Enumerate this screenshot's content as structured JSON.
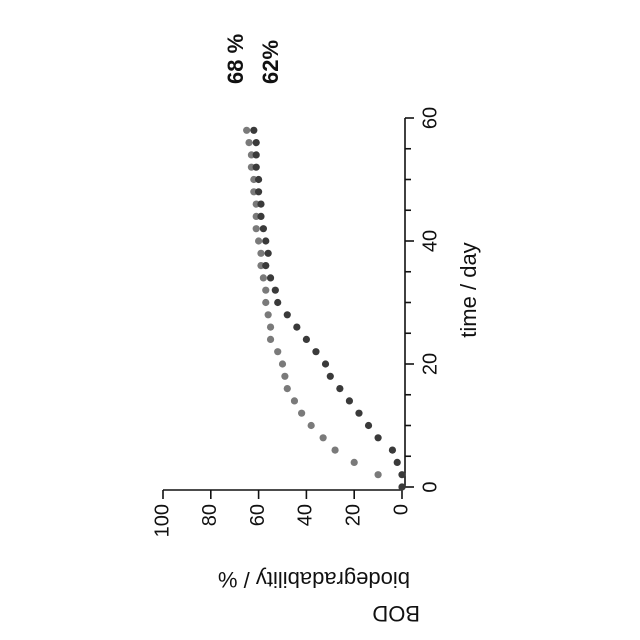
{
  "chart_data": {
    "type": "scatter",
    "x_label": "time / day",
    "y_label": [
      "BOD",
      "biodegradability / %"
    ],
    "annotations": [
      "68 %",
      "62%"
    ],
    "x": [
      0,
      2,
      4,
      6,
      8,
      10,
      12,
      14,
      16,
      18,
      20,
      22,
      24,
      26,
      28,
      30,
      32,
      34,
      36,
      38,
      40,
      42,
      44,
      46,
      48,
      50,
      52,
      54,
      56,
      58
    ],
    "series": [
      {
        "color": "#7a7a7a",
        "values": [
          0,
          10,
          20,
          28,
          33,
          38,
          42,
          45,
          48,
          49,
          50,
          52,
          55,
          55,
          56,
          57,
          57,
          58,
          59,
          59,
          60,
          61,
          61,
          61,
          62,
          62,
          63,
          63,
          64,
          65
        ]
      },
      {
        "color": "#3a3a3a",
        "values": [
          0,
          0,
          2,
          4,
          10,
          14,
          18,
          22,
          26,
          30,
          32,
          36,
          40,
          44,
          48,
          52,
          53,
          55,
          57,
          56,
          57,
          58,
          59,
          59,
          60,
          60,
          61,
          61,
          61,
          62
        ]
      }
    ],
    "xlim": [
      0,
      60
    ],
    "xticks": [
      0,
      20,
      40,
      60
    ],
    "xminor_ticks": [
      5,
      10,
      15,
      25,
      30,
      35,
      45,
      50,
      55
    ],
    "ylim": [
      0,
      100
    ],
    "yticks": [
      0,
      20,
      40,
      60,
      80,
      100
    ]
  }
}
